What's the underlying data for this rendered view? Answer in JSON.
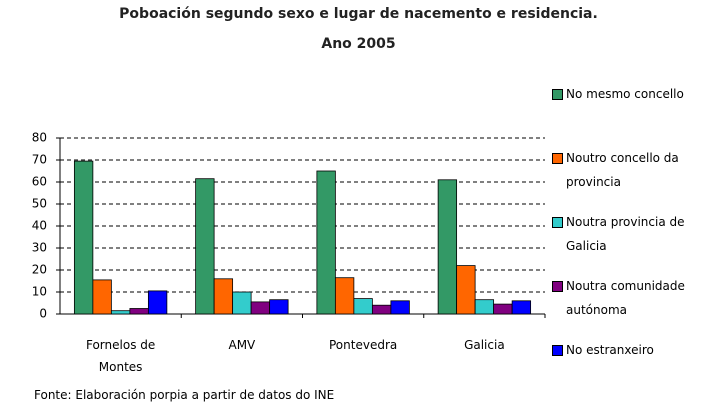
{
  "chart_data": {
    "type": "bar",
    "title": [
      "Poboación segundo sexo e lugar de nacemento e residencia.",
      "Ano 2005"
    ],
    "source": "Fonte: Elaboración porpia a partir de datos do INE",
    "categories": [
      "Fornelos de Montes",
      "AMV",
      "Pontevedra",
      "Galicia"
    ],
    "series": [
      {
        "name": "No mesmo concello",
        "color": "#339966",
        "values": [
          69.5,
          61.5,
          65,
          61
        ]
      },
      {
        "name": "Noutro concello da provincia",
        "color": "#ff6600",
        "values": [
          15.5,
          16,
          16.5,
          22
        ]
      },
      {
        "name": "Noutra provincia de Galicia",
        "color": "#33cccc",
        "values": [
          1.5,
          10,
          7,
          6.5
        ]
      },
      {
        "name": "Noutra comunidade autónoma",
        "color": "#800080",
        "values": [
          2.5,
          5.5,
          4,
          4.5
        ]
      },
      {
        "name": "No estranxeiro",
        "color": "#0000ff",
        "values": [
          10.5,
          6.5,
          6,
          6
        ]
      }
    ],
    "ylim": [
      0,
      80
    ],
    "yticks": [
      0,
      10,
      20,
      30,
      40,
      50,
      60,
      70,
      80
    ],
    "grid": true,
    "legend": "right"
  }
}
